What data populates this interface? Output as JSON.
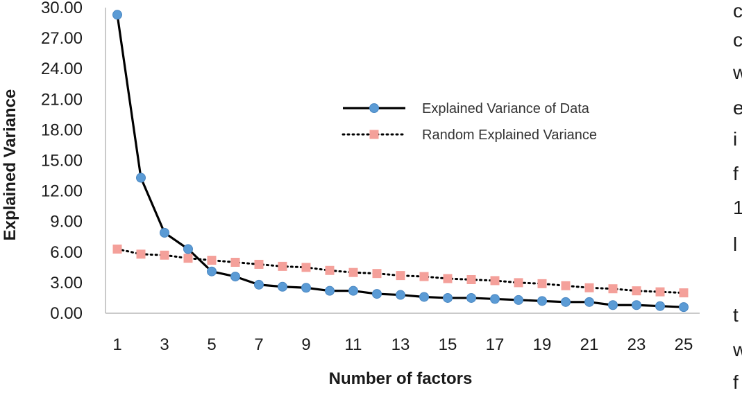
{
  "chart_data": {
    "type": "line",
    "title": "",
    "xlabel": "Number of factors",
    "ylabel": "Explained Variance",
    "x": [
      1,
      2,
      3,
      4,
      5,
      6,
      7,
      8,
      9,
      10,
      11,
      12,
      13,
      14,
      15,
      16,
      17,
      18,
      19,
      20,
      21,
      22,
      23,
      24,
      25
    ],
    "x_tick_labels": [
      "1",
      "3",
      "5",
      "7",
      "9",
      "11",
      "13",
      "15",
      "17",
      "19",
      "21",
      "23",
      "25"
    ],
    "y_tick_labels": [
      "0.00",
      "3.00",
      "6.00",
      "9.00",
      "12.00",
      "15.00",
      "18.00",
      "21.00",
      "24.00",
      "27.00",
      "30.00"
    ],
    "ylim": [
      0,
      30
    ],
    "grid": false,
    "legend_position": "upper-right",
    "series": [
      {
        "name": "Explained Variance of Data",
        "color": "#5b9bd5",
        "line_color": "#000000",
        "line_style": "solid",
        "marker": "circle",
        "values": [
          29.3,
          13.3,
          7.9,
          6.3,
          4.1,
          3.6,
          2.8,
          2.6,
          2.5,
          2.2,
          2.2,
          1.9,
          1.8,
          1.6,
          1.5,
          1.5,
          1.4,
          1.3,
          1.2,
          1.1,
          1.1,
          0.8,
          0.8,
          0.7,
          0.6
        ]
      },
      {
        "name": "Random Explained Variance",
        "color": "#f4a09a",
        "line_color": "#000000",
        "line_style": "dotted",
        "marker": "square",
        "values": [
          6.3,
          5.8,
          5.7,
          5.4,
          5.2,
          5.0,
          4.8,
          4.6,
          4.5,
          4.2,
          4.0,
          3.9,
          3.7,
          3.6,
          3.4,
          3.3,
          3.2,
          3.0,
          2.9,
          2.7,
          2.5,
          2.4,
          2.2,
          2.1,
          2.0
        ]
      }
    ]
  },
  "side_text": [
    "c",
    "c",
    "w",
    "e",
    "i",
    "f",
    "1",
    "l",
    "t",
    "w",
    "f"
  ]
}
